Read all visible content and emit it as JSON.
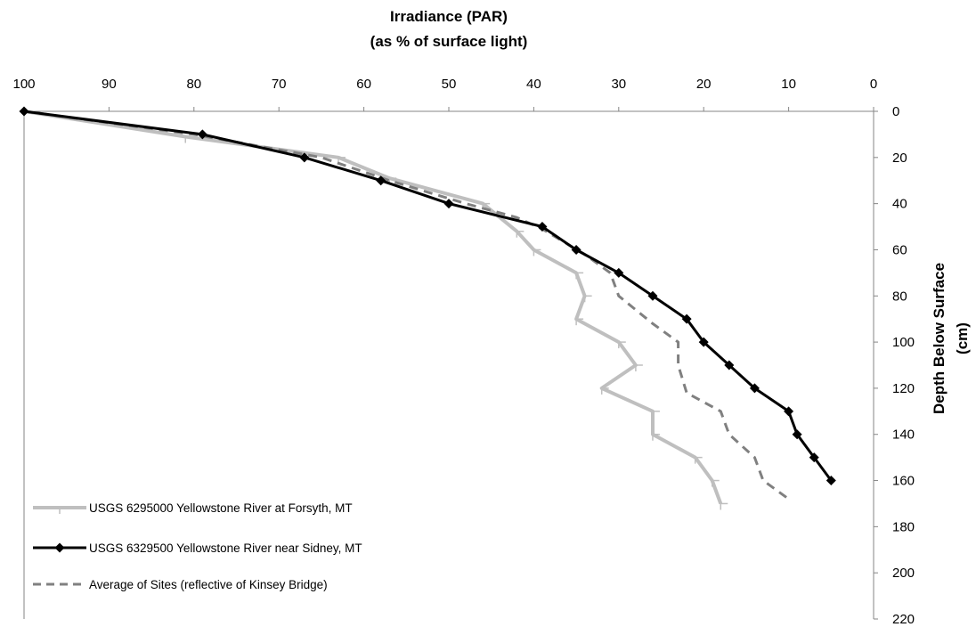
{
  "chart_data": {
    "type": "line",
    "title": "",
    "xlabel": [
      "Irradiance (PAR)",
      "(as % of surface light)"
    ],
    "ylabel": [
      "Depth Below Surface",
      "(cm)"
    ],
    "x_axis": {
      "position": "top",
      "reversed": true,
      "min": 0,
      "max": 100,
      "ticks": [
        100,
        90,
        80,
        70,
        60,
        50,
        40,
        30,
        20,
        10,
        0
      ]
    },
    "y_axis": {
      "position": "right",
      "reversed": true,
      "min": 0,
      "max": 220,
      "ticks": [
        0,
        20,
        40,
        60,
        80,
        100,
        120,
        140,
        160,
        180,
        200,
        220
      ]
    },
    "grid": false,
    "legend_position": "bottom-left",
    "series": [
      {
        "name": "USGS 6295000 Yellowstone River at Forsyth, MT",
        "color": "#bfbfbf",
        "line_style": "solid",
        "marker": "tick",
        "x": [
          100,
          81,
          63,
          57,
          46,
          42,
          40,
          35,
          34,
          35,
          30,
          28,
          32,
          26,
          26,
          21,
          19,
          18
        ],
        "y": [
          0,
          11,
          20,
          29,
          40,
          52,
          60,
          70,
          80,
          90,
          100,
          110,
          120,
          130,
          140,
          150,
          160,
          170
        ]
      },
      {
        "name": "USGS 6329500 Yellowstone River near Sidney, MT",
        "color": "#000000",
        "line_style": "solid",
        "marker": "diamond",
        "x": [
          100,
          79,
          67,
          58,
          50,
          39,
          35,
          30,
          26,
          22,
          20,
          17,
          14,
          10,
          9,
          7,
          5
        ],
        "y": [
          0,
          10,
          20,
          30,
          40,
          50,
          60,
          70,
          80,
          90,
          100,
          110,
          120,
          130,
          140,
          150,
          160
        ]
      },
      {
        "name": "Average of Sites (reflective of Kinsey Bridge)",
        "color": "#808080",
        "line_style": "dashed",
        "marker": "none",
        "x": [
          100,
          80,
          65,
          57,
          48,
          42,
          39,
          34,
          31,
          30,
          26,
          23,
          23,
          22,
          18,
          17,
          14,
          13,
          10
        ],
        "y": [
          0,
          10,
          20,
          30,
          40,
          46,
          51,
          62,
          70,
          80,
          92,
          100,
          110,
          122,
          130,
          140,
          150,
          160,
          168
        ]
      }
    ]
  }
}
